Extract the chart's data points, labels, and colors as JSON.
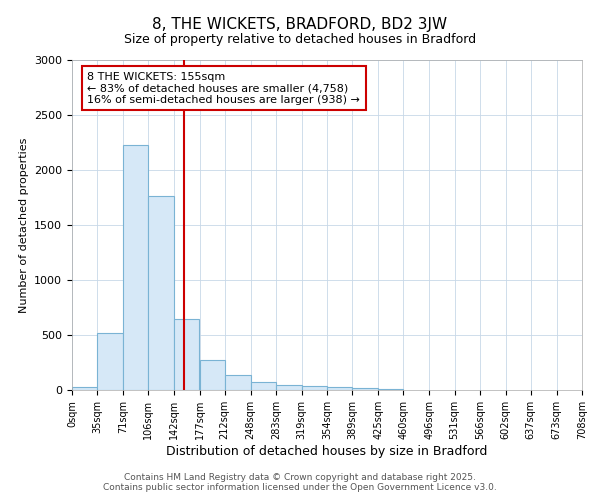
{
  "title": "8, THE WICKETS, BRADFORD, BD2 3JW",
  "subtitle": "Size of property relative to detached houses in Bradford",
  "xlabel": "Distribution of detached houses by size in Bradford",
  "ylabel": "Number of detached properties",
  "footnote1": "Contains HM Land Registry data © Crown copyright and database right 2025.",
  "footnote2": "Contains public sector information licensed under the Open Government Licence v3.0.",
  "annotation_line1": "8 THE WICKETS: 155sqm",
  "annotation_line2": "← 83% of detached houses are smaller (4,758)",
  "annotation_line3": "16% of semi-detached houses are larger (938) →",
  "property_size": 155,
  "bin_edges": [
    0,
    35,
    71,
    106,
    142,
    177,
    212,
    248,
    283,
    319,
    354,
    389,
    425,
    460,
    496,
    531,
    566,
    602,
    637,
    673,
    708
  ],
  "bar_heights": [
    25,
    520,
    2230,
    1760,
    650,
    270,
    140,
    70,
    50,
    40,
    25,
    18,
    12,
    0,
    0,
    0,
    0,
    0,
    0,
    0
  ],
  "bar_color": "#d6e8f7",
  "bar_edge_color": "#7ab3d4",
  "vline_color": "#cc0000",
  "annotation_box_color": "#cc0000",
  "background_color": "#ffffff",
  "plot_bg_color": "#ffffff",
  "ylim": [
    0,
    3000
  ],
  "yticks": [
    0,
    500,
    1000,
    1500,
    2000,
    2500,
    3000
  ],
  "grid_color": "#c8d8e8",
  "title_fontsize": 11,
  "subtitle_fontsize": 9,
  "xlabel_fontsize": 9,
  "ylabel_fontsize": 8,
  "footnote_fontsize": 6.5,
  "annotation_fontsize": 8
}
